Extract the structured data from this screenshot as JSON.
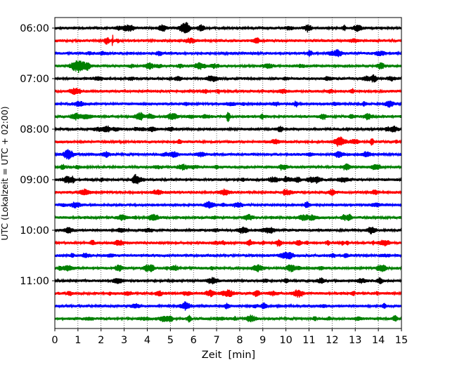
{
  "chart_data": {
    "type": "line",
    "chart_kind": "helicorder",
    "xlabel": "Zeit  [min]",
    "ylabel": "UTC (Lokalzeit = UTC + 02:00)",
    "xlim": [
      0,
      15
    ],
    "x_ticks": [
      "0",
      "1",
      "2",
      "3",
      "4",
      "5",
      "6",
      "7",
      "8",
      "9",
      "10",
      "11",
      "12",
      "13",
      "14",
      "15"
    ],
    "y_ticks": [
      "06:00",
      "07:00",
      "08:00",
      "09:00",
      "10:00",
      "11:00"
    ],
    "grid": "vertical dotted lines at each minute",
    "trace_minutes": 15,
    "trace_colors": [
      "#000000",
      "#ff0000",
      "#0000ff",
      "#008000"
    ],
    "traces": [
      {
        "start": "06:00",
        "color": "#000000"
      },
      {
        "start": "06:15",
        "color": "#ff0000"
      },
      {
        "start": "06:30",
        "color": "#0000ff"
      },
      {
        "start": "06:45",
        "color": "#008000"
      },
      {
        "start": "07:00",
        "color": "#000000"
      },
      {
        "start": "07:15",
        "color": "#ff0000"
      },
      {
        "start": "07:30",
        "color": "#0000ff"
      },
      {
        "start": "07:45",
        "color": "#008000"
      },
      {
        "start": "08:00",
        "color": "#000000"
      },
      {
        "start": "08:15",
        "color": "#ff0000"
      },
      {
        "start": "08:30",
        "color": "#0000ff"
      },
      {
        "start": "08:45",
        "color": "#008000"
      },
      {
        "start": "09:00",
        "color": "#000000"
      },
      {
        "start": "09:15",
        "color": "#ff0000"
      },
      {
        "start": "09:30",
        "color": "#0000ff"
      },
      {
        "start": "09:45",
        "color": "#008000"
      },
      {
        "start": "10:00",
        "color": "#000000"
      },
      {
        "start": "10:15",
        "color": "#ff0000"
      },
      {
        "start": "10:30",
        "color": "#0000ff"
      },
      {
        "start": "10:45",
        "color": "#008000"
      },
      {
        "start": "11:00",
        "color": "#000000"
      },
      {
        "start": "11:15",
        "color": "#ff0000"
      },
      {
        "start": "11:30",
        "color": "#0000ff"
      },
      {
        "start": "11:45",
        "color": "#008000"
      }
    ],
    "annotations": [
      {
        "trace": "06:15",
        "minute": 2.5,
        "note": "spike"
      }
    ]
  }
}
